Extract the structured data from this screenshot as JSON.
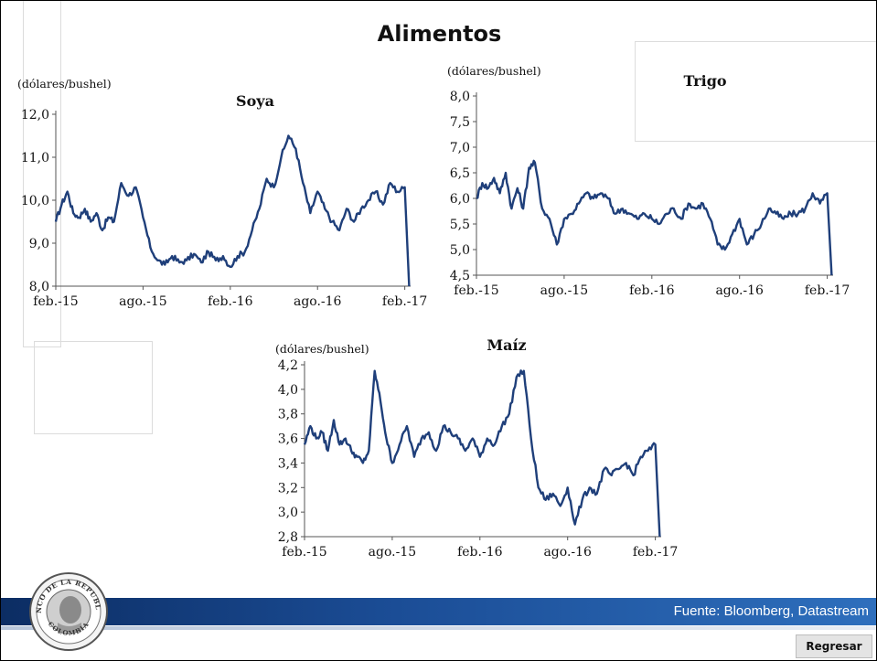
{
  "slide": {
    "title": "Alimentos",
    "source": "Fuente: Bloomberg, Datastream",
    "back_button": "Regresar",
    "band_color": "#1b4d96",
    "seal_text_top": "BANCO DE LA REPUBLICA",
    "seal_text_bottom": "COLOMBIA"
  },
  "chart_data": [
    {
      "type": "line",
      "title": "Soya",
      "ylabel": "(dólares/bushel)",
      "ylim": [
        8.0,
        12.0
      ],
      "yticks": [
        8.0,
        9.0,
        10.0,
        11.0,
        12.0
      ],
      "ytick_labels": [
        "8,0",
        "9,0",
        "10,0",
        "11,0",
        "12,0"
      ],
      "xtick_labels": [
        "feb.-15",
        "ago.-15",
        "feb.-16",
        "ago.-16",
        "feb.-17"
      ],
      "color": "#1f3f7a",
      "series": [
        {
          "x": [
            0.0,
            0.4,
            0.8,
            1.2,
            1.6,
            2.0,
            2.4,
            2.8,
            3.2,
            3.6,
            4.0,
            4.5,
            5.0,
            5.5,
            6.0,
            6.5,
            7.0,
            7.5,
            8.0,
            8.5,
            9.0,
            9.5,
            10.0,
            10.5,
            11.0,
            11.5,
            12.0,
            12.5,
            13.0,
            13.5,
            14.0,
            14.5,
            15.0,
            15.5,
            16.0,
            16.5,
            17.0,
            17.5,
            18.0,
            18.5,
            19.0,
            19.5,
            20.0,
            20.5,
            21.0,
            21.5,
            22.0,
            22.5,
            23.0,
            23.5,
            24.0,
            24.3
          ],
          "values": [
            9.5,
            9.9,
            10.2,
            9.7,
            9.6,
            9.8,
            9.5,
            9.7,
            9.3,
            9.6,
            9.5,
            10.4,
            10.1,
            10.3,
            9.6,
            8.9,
            8.6,
            8.5,
            8.7,
            8.55,
            8.6,
            8.75,
            8.55,
            8.8,
            8.6,
            8.7,
            8.45,
            8.7,
            8.8,
            9.3,
            9.8,
            10.5,
            10.3,
            11.0,
            11.5,
            11.2,
            10.4,
            9.7,
            10.2,
            9.8,
            9.5,
            9.3,
            9.8,
            9.5,
            9.8,
            10.0,
            10.2,
            9.9,
            10.4,
            10.2,
            10.3,
            8.0
          ]
        }
      ]
    },
    {
      "type": "line",
      "title": "Trigo",
      "ylabel": "(dólares/bushel)",
      "ylim": [
        4.5,
        8.0
      ],
      "yticks": [
        4.5,
        5.0,
        5.5,
        6.0,
        6.5,
        7.0,
        7.5,
        8.0
      ],
      "ytick_labels": [
        "4,5",
        "5,0",
        "5,5",
        "6,0",
        "6,5",
        "7,0",
        "7,5",
        "8,0"
      ],
      "xtick_labels": [
        "feb.-15",
        "ago.-15",
        "feb.-16",
        "ago.-16",
        "feb.-17"
      ],
      "color": "#1f3f7a",
      "series": [
        {
          "x": [
            0.0,
            0.4,
            0.8,
            1.2,
            1.6,
            2.0,
            2.4,
            2.8,
            3.2,
            3.6,
            4.0,
            4.5,
            5.0,
            5.5,
            6.0,
            6.5,
            7.0,
            7.5,
            8.0,
            8.5,
            9.0,
            9.5,
            10.0,
            10.5,
            11.0,
            11.5,
            12.0,
            12.5,
            13.0,
            13.5,
            14.0,
            14.5,
            15.0,
            15.5,
            16.0,
            16.5,
            17.0,
            17.5,
            18.0,
            18.5,
            19.0,
            19.5,
            20.0,
            20.5,
            21.0,
            21.5,
            22.0,
            22.5,
            23.0,
            23.5,
            24.0,
            24.3
          ],
          "values": [
            6.0,
            6.3,
            6.2,
            6.4,
            6.1,
            6.5,
            5.8,
            6.2,
            5.8,
            6.6,
            6.7,
            5.8,
            5.6,
            5.1,
            5.6,
            5.7,
            5.9,
            6.1,
            6.0,
            6.1,
            6.0,
            5.7,
            5.8,
            5.7,
            5.6,
            5.7,
            5.6,
            5.5,
            5.7,
            5.8,
            5.6,
            5.9,
            5.8,
            5.9,
            5.6,
            5.1,
            5.0,
            5.3,
            5.6,
            5.1,
            5.3,
            5.5,
            5.8,
            5.7,
            5.6,
            5.7,
            5.7,
            5.8,
            6.1,
            5.9,
            6.1,
            4.5
          ]
        }
      ]
    },
    {
      "type": "line",
      "title": "Maíz",
      "ylabel": "(dólares/bushel)",
      "ylim": [
        2.8,
        4.2
      ],
      "yticks": [
        2.8,
        3.0,
        3.2,
        3.4,
        3.6,
        3.8,
        4.0,
        4.2
      ],
      "ytick_labels": [
        "2,8",
        "3,0",
        "3,2",
        "3,4",
        "3,6",
        "3,8",
        "4,0",
        "4,2"
      ],
      "xtick_labels": [
        "feb.-15",
        "ago.-15",
        "feb.-16",
        "ago.-16",
        "feb.-17"
      ],
      "color": "#1f3f7a",
      "series": [
        {
          "x": [
            0.0,
            0.4,
            0.8,
            1.2,
            1.6,
            2.0,
            2.4,
            2.8,
            3.2,
            3.6,
            4.0,
            4.4,
            4.8,
            5.2,
            5.6,
            6.0,
            6.5,
            7.0,
            7.5,
            8.0,
            8.5,
            9.0,
            9.5,
            10.0,
            10.5,
            11.0,
            11.5,
            12.0,
            12.5,
            13.0,
            13.5,
            14.0,
            14.5,
            15.0,
            15.5,
            16.0,
            16.5,
            17.0,
            17.5,
            18.0,
            18.5,
            19.0,
            19.5,
            20.0,
            20.5,
            21.0,
            21.5,
            22.0,
            22.5,
            23.0,
            23.5,
            24.0,
            24.3
          ],
          "values": [
            3.55,
            3.7,
            3.6,
            3.65,
            3.5,
            3.75,
            3.55,
            3.6,
            3.5,
            3.45,
            3.4,
            3.5,
            4.15,
            3.9,
            3.6,
            3.4,
            3.55,
            3.7,
            3.45,
            3.6,
            3.65,
            3.5,
            3.7,
            3.65,
            3.6,
            3.5,
            3.6,
            3.45,
            3.6,
            3.55,
            3.7,
            3.8,
            4.1,
            4.15,
            3.6,
            3.2,
            3.1,
            3.15,
            3.05,
            3.2,
            2.9,
            3.1,
            3.2,
            3.15,
            3.35,
            3.3,
            3.35,
            3.4,
            3.3,
            3.45,
            3.5,
            3.55,
            2.8
          ]
        }
      ]
    }
  ]
}
